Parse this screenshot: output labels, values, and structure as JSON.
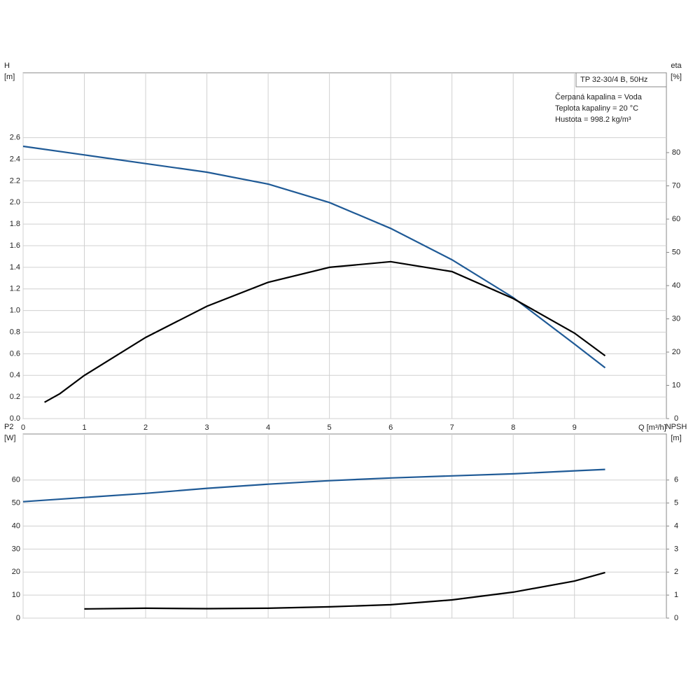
{
  "chart_data": [
    {
      "type": "line",
      "title": "TP 32-30/4 B, 50Hz",
      "annotations": [
        "Čerpaná kapalina = Voda",
        "Teplota kapaliny = 20 °C",
        "Hustota = 998.2 kg/m³"
      ],
      "xlabel": "Q [m³/h]",
      "ylabel": [
        "H",
        "[m]"
      ],
      "y2label": [
        "eta",
        "[%]"
      ],
      "xlim": [
        0,
        10.5
      ],
      "xticks": [
        0,
        1,
        2,
        3,
        4,
        5,
        6,
        7,
        8,
        9
      ],
      "show_xtick_labels": true,
      "ylim": [
        0,
        3.2
      ],
      "yticks": [
        {
          "value": 0,
          "label": "0.0"
        },
        0.2,
        0.4,
        0.6,
        0.8,
        {
          "value": 1,
          "label": "1.0"
        },
        1.2,
        1.4,
        1.6,
        1.8,
        {
          "value": 2,
          "label": "2.0"
        },
        2.2,
        2.4,
        2.6
      ],
      "y2lim": [
        0,
        104
      ],
      "y2ticks": [
        0,
        10,
        20,
        30,
        40,
        50,
        60,
        70,
        80
      ],
      "grid": true,
      "series": [
        {
          "color": "#1f5a96",
          "x": [
            0,
            1,
            2,
            3,
            4,
            5,
            6,
            7,
            8,
            9,
            9.5
          ],
          "values": [
            2.52,
            2.44,
            2.36,
            2.28,
            2.17,
            2.0,
            1.76,
            1.47,
            1.12,
            0.69,
            0.47
          ]
        },
        {
          "color": "#000000",
          "axis": "y2",
          "x": [
            0.35,
            0.6,
            1,
            2,
            3,
            4,
            5,
            6,
            7,
            8,
            9,
            9.5
          ],
          "values": [
            4.9,
            7.5,
            13,
            24.4,
            33.8,
            41,
            45.5,
            47.2,
            44.2,
            36.1,
            25.7,
            18.9
          ]
        }
      ]
    },
    {
      "type": "line",
      "ylabel": [
        "P2",
        "[W]"
      ],
      "y2label": [
        "NPSH",
        "[m]"
      ],
      "xlim": [
        0,
        10.5
      ],
      "xticks": [
        0,
        1,
        2,
        3,
        4,
        5,
        6,
        7,
        8,
        9
      ],
      "show_xtick_labels": false,
      "ylim": [
        0,
        80
      ],
      "yticks": [
        0,
        10,
        20,
        30,
        40,
        50,
        60
      ],
      "y2lim": [
        0,
        8
      ],
      "y2ticks": [
        0,
        1,
        2,
        3,
        4,
        5,
        6
      ],
      "grid": true,
      "series": [
        {
          "color": "#1f5a96",
          "x": [
            0,
            1,
            2,
            3,
            4,
            5,
            6,
            7,
            8,
            9,
            9.5
          ],
          "values": [
            50.6,
            52.4,
            54.2,
            56.4,
            58.2,
            59.7,
            60.9,
            61.8,
            62.7,
            64,
            64.6
          ]
        },
        {
          "color": "#000000",
          "axis": "y2",
          "x": [
            1,
            2,
            3,
            4,
            5,
            6,
            7,
            8,
            9,
            9.5
          ],
          "values": [
            0.4,
            0.43,
            0.41,
            0.43,
            0.49,
            0.58,
            0.79,
            1.13,
            1.61,
            1.98
          ]
        }
      ]
    }
  ]
}
